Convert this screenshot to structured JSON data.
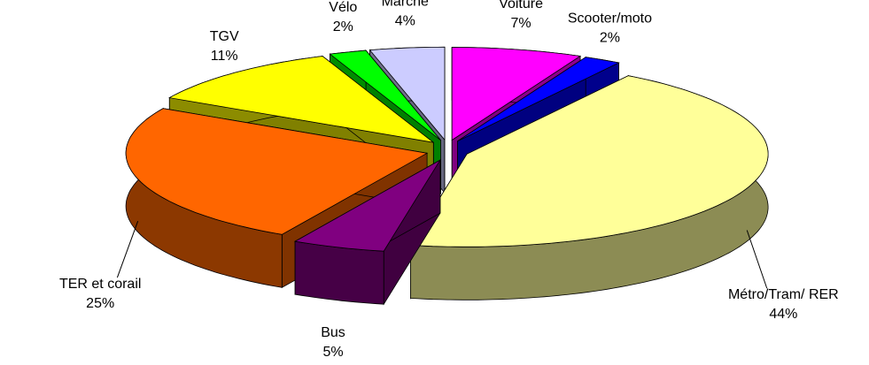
{
  "chart_data": {
    "type": "pie3d",
    "categories": [
      "Voiture",
      "Scooter/moto",
      "Métro/Tram/ RER",
      "Bus",
      "TER et corail",
      "TGV",
      "Vélo",
      "Marche"
    ],
    "values": [
      7,
      2,
      44,
      5,
      25,
      11,
      2,
      4
    ],
    "value_labels": [
      "7%",
      "2%",
      "44%",
      "5%",
      "25%",
      "11%",
      "2%",
      "4%"
    ],
    "colors": [
      "#ff00ff",
      "#0000ff",
      "#ffff99",
      "#800080",
      "#ff6600",
      "#ffff00",
      "#00ff00",
      "#ccccff"
    ]
  }
}
